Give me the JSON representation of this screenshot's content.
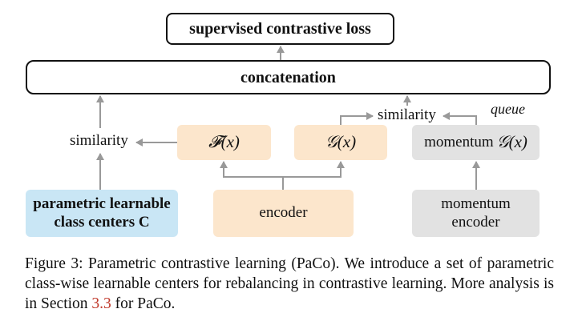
{
  "diagram": {
    "loss_label": "supervised contrastive loss",
    "concat_label": "concatenation",
    "f_label": "𝓕(x)",
    "g_label": "𝒢(x)",
    "momentum_g_prefix": "momentum",
    "momentum_g_math": "𝒢(x)",
    "similarity_left": "similarity",
    "similarity_top": "similarity",
    "queue_label": "queue",
    "centers_line1": "parametric learnable",
    "centers_line2": "class centers C",
    "encoder_label": "encoder",
    "momentum_encoder_line1": "momentum",
    "momentum_encoder_line2": "encoder",
    "colors": {
      "orange_box": "#fce6cc",
      "gray_box": "#e2e2e2",
      "blue_box": "#c9e6f5",
      "arrow": "#999999",
      "ref_link": "#c0392b"
    }
  },
  "caption": {
    "prefix": "Figure 3: Parametric contrastive learning (PaCo). We introduce a set of parametric class-wise learnable centers for rebalancing in contrastive learning. More analysis is in Section ",
    "ref": "3.3",
    "suffix": " for PaCo."
  }
}
